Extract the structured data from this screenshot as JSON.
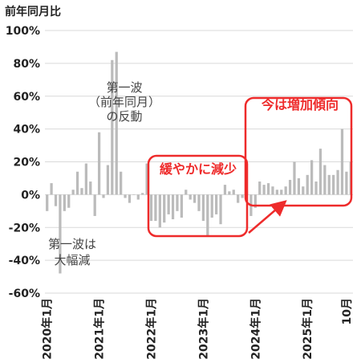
{
  "chart_data": {
    "type": "bar",
    "ylabel": "前年同月比",
    "ylim": [
      -60,
      100
    ],
    "yticks": [
      "100%",
      "80%",
      "60%",
      "40%",
      "20%",
      "0%",
      "-20%",
      "-40%",
      "-60%"
    ],
    "ytick_values": [
      100,
      80,
      60,
      40,
      20,
      0,
      -20,
      -40,
      -60
    ],
    "xtick_labels": [
      "2020年1月",
      "2021年1月",
      "2022年1月",
      "2023年1月",
      "2024年1月",
      "2025年1月",
      "10月"
    ],
    "xtick_indices": [
      0,
      12,
      24,
      36,
      48,
      60,
      69
    ],
    "grid": true,
    "bar_color": "#bbbbbb",
    "values": [
      -10,
      7,
      -7,
      -48,
      -10,
      -8,
      3,
      14,
      4,
      19,
      8,
      -13,
      38,
      -2,
      18,
      82,
      87,
      14,
      -2,
      -5,
      0,
      -3,
      1,
      19,
      -16,
      -16,
      -20,
      -17,
      -12,
      -15,
      -10,
      -14,
      3,
      -3,
      -5,
      -10,
      -16,
      -25,
      -14,
      -12,
      -18,
      6,
      2,
      3,
      -5,
      -2,
      2,
      -13,
      -8,
      8,
      6,
      7,
      5,
      3,
      3,
      5,
      9,
      20,
      10,
      5,
      12,
      21,
      8,
      28,
      18,
      12,
      12,
      15,
      40,
      14,
      20
    ],
    "annotations": {
      "covid_drop": [
        "第一波は",
        "大幅減"
      ],
      "rebound": [
        "第一波",
        "（前年同月）",
        "の反動"
      ],
      "decline_box": "緩やかに減少",
      "increase_box": "今は増加傾向"
    },
    "accent_color": "#ee2b2b"
  }
}
